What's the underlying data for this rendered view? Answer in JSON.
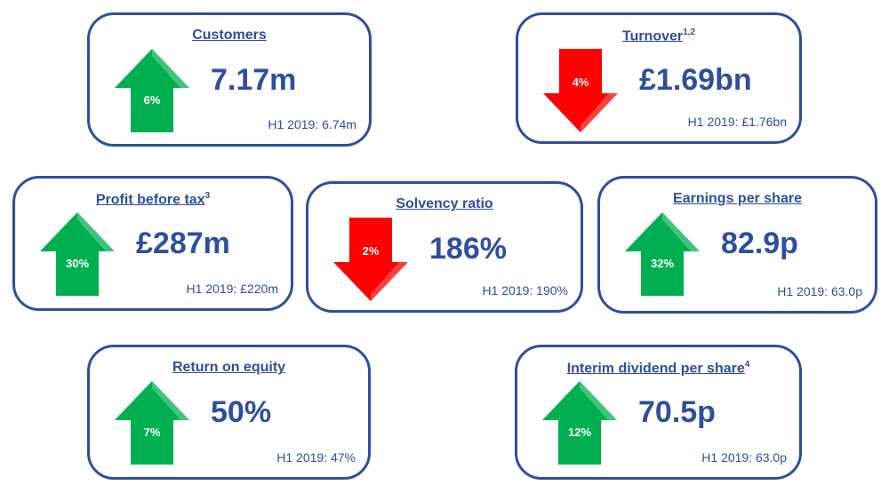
{
  "colors": {
    "border": "#2e4f9e",
    "text": "#2e4f9e",
    "up": "#00b050",
    "down": "#ff0000"
  },
  "cards": [
    {
      "title": "Customers",
      "footnote": "",
      "direction": "up",
      "change": "6%",
      "value": "7.17m",
      "comparison": "H1 2019: 6.74m"
    },
    {
      "title": "Turnover",
      "footnote": "1,2",
      "direction": "down",
      "change": "4%",
      "value": "£1.69bn",
      "comparison": "H1 2019: £1.76bn"
    },
    {
      "title": "Profit before tax",
      "footnote": "3",
      "direction": "up",
      "change": "30%",
      "value": "£287m",
      "comparison": "H1 2019: £220m"
    },
    {
      "title": "Solvency ratio",
      "footnote": "",
      "direction": "down",
      "change": "2%",
      "value": "186%",
      "comparison": "H1 2019: 190%"
    },
    {
      "title": "Earnings per share",
      "footnote": "",
      "direction": "up",
      "change": "32%",
      "value": "82.9p",
      "comparison": "H1 2019: 63.0p"
    },
    {
      "title": "Return on equity",
      "footnote": "",
      "direction": "up",
      "change": "7%",
      "value": "50%",
      "comparison": "H1 2019: 47%"
    },
    {
      "title": "Interim dividend per share",
      "footnote": "4",
      "direction": "up",
      "change": "12%",
      "value": "70.5p",
      "comparison": "H1 2019: 63.0p"
    }
  ]
}
